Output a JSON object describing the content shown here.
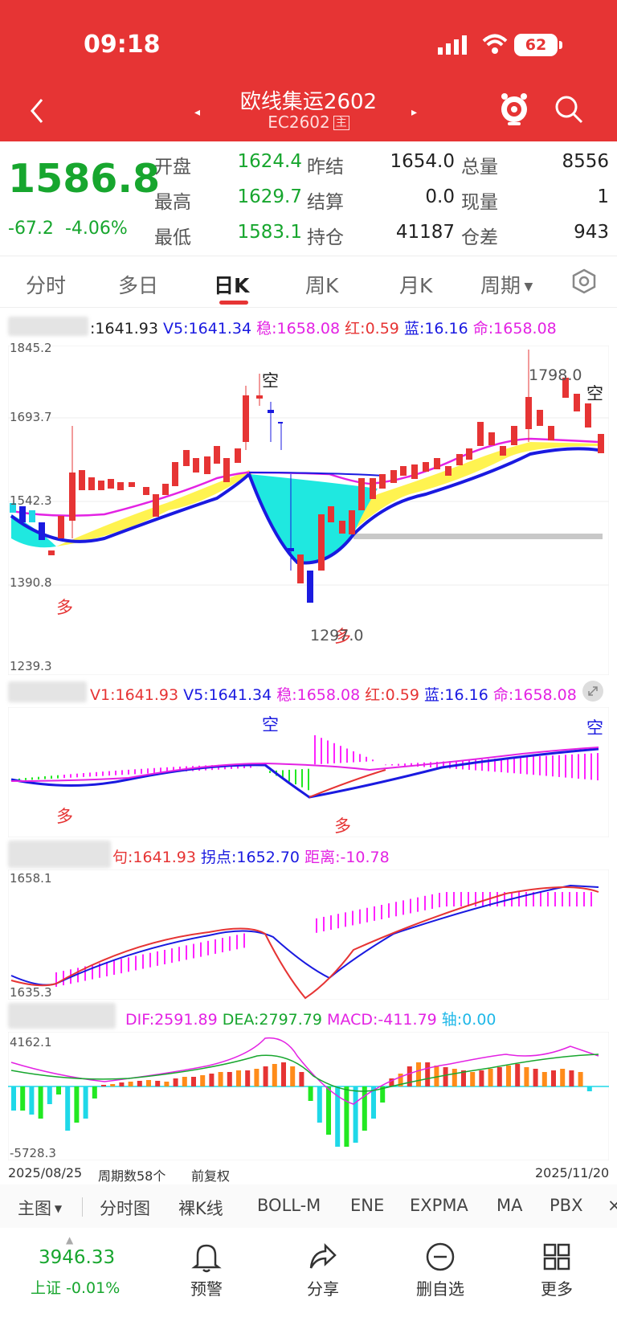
{
  "status": {
    "time": "09:18",
    "battery": "62"
  },
  "header": {
    "title": "欧线集运2602",
    "code": "EC2602",
    "main_badge": "主"
  },
  "quote": {
    "last": "1586.8",
    "change": "-67.2",
    "change_pct": "-4.06%",
    "labels": {
      "open": "开盘",
      "prev_close": "昨结",
      "volume": "总量",
      "high": "最高",
      "settle": "结算",
      "cur_vol": "现量",
      "low": "最低",
      "oi": "持仓",
      "oi_diff": "仓差"
    },
    "values": {
      "open": "1624.4",
      "prev_close": "1654.0",
      "volume": "8556",
      "high": "1629.7",
      "settle": "0.0",
      "cur_vol": "1",
      "low": "1583.1",
      "oi": "41187",
      "oi_diff": "943"
    }
  },
  "tabs": [
    "分时",
    "多日",
    "日K",
    "周K",
    "月K"
  ],
  "period_label": "周期",
  "main_indicator": {
    "v1": ":1641.93",
    "v5": "V5:1641.34",
    "wen": "稳:1658.08",
    "hong": "红:0.59",
    "lan": "蓝:16.16",
    "ming": "命:1658.08"
  },
  "main_axis": {
    "top": "1845.2",
    "l2": "1693.7",
    "l3": "1542.3",
    "l4": "1390.8",
    "bottom": "1239.3"
  },
  "main_marks": {
    "kong1": "空",
    "kong2": "空",
    "duo1": "多",
    "duo2": "多",
    "high_label": "1798.0",
    "low_label": "1297.0"
  },
  "sub1": {
    "v1": "V1:1641.93",
    "v5": "V5:1641.34",
    "wen": "稳:1658.08",
    "hong": "红:0.59",
    "lan": "蓝:16.16",
    "ming": "命:1658.08",
    "kong1": "空",
    "kong2": "空",
    "duo1": "多",
    "duo2": "多"
  },
  "sub2": {
    "jun": "句:1641.93",
    "guai": "拐点:1652.70",
    "ju": "距离:-10.78",
    "top": "1658.1",
    "bottom": "1635.3"
  },
  "macd": {
    "dif": "DIF:2591.89",
    "dea": "DEA:2797.79",
    "macd": "MACD:-411.79",
    "zhou": "轴:0.00",
    "top": "4162.1",
    "bottom": "-5728.3"
  },
  "footer": {
    "start": "2025/08/25",
    "count": "周期数58个",
    "adj": "前复权",
    "end": "2025/11/20"
  },
  "bottom_tabs": [
    "主图",
    "分时图",
    "裸K线",
    "BOLL-M",
    "ENE",
    "EXPMA",
    "MA",
    "PBX"
  ],
  "nav": {
    "index_value": "3946.33",
    "index_label": "上证 -0.01%",
    "items": [
      "预警",
      "分享",
      "删自选",
      "更多"
    ]
  },
  "colors": {
    "red": "#e63434",
    "green": "#17a62e",
    "cyan": "#1fd8e8",
    "magenta": "#ff22ff",
    "blue": "#1a1ae0"
  }
}
